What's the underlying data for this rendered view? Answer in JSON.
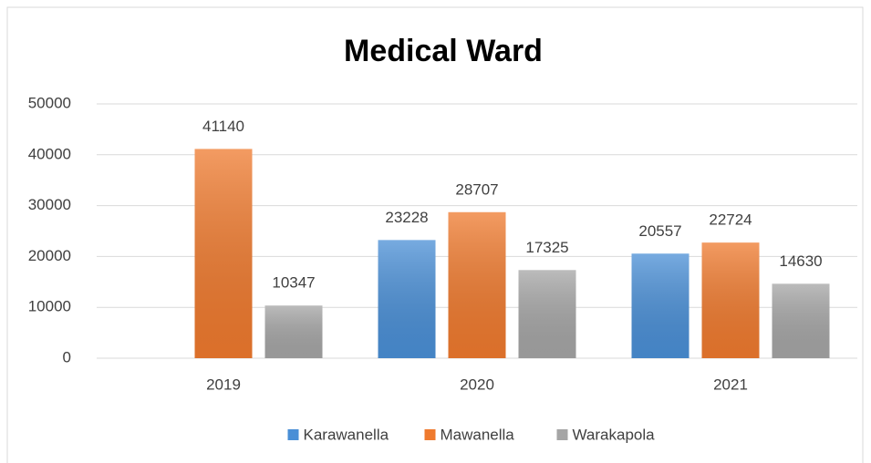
{
  "chart_data": {
    "type": "bar",
    "title": "Medical Ward",
    "categories": [
      "2019",
      "2020",
      "2021"
    ],
    "series": [
      {
        "name": "Karawanella",
        "color": "#4a8fd6",
        "values": [
          null,
          23228,
          20557
        ]
      },
      {
        "name": "Mawanella",
        "color": "#ef7a2e",
        "values": [
          41140,
          28707,
          22724
        ]
      },
      {
        "name": "Warakapola",
        "color": "#a5a5a5",
        "values": [
          10347,
          17325,
          14630
        ]
      }
    ],
    "ylim": [
      0,
      50000
    ],
    "yticks": [
      0,
      10000,
      20000,
      30000,
      40000,
      50000
    ],
    "grid": true,
    "legend": "bottom"
  }
}
